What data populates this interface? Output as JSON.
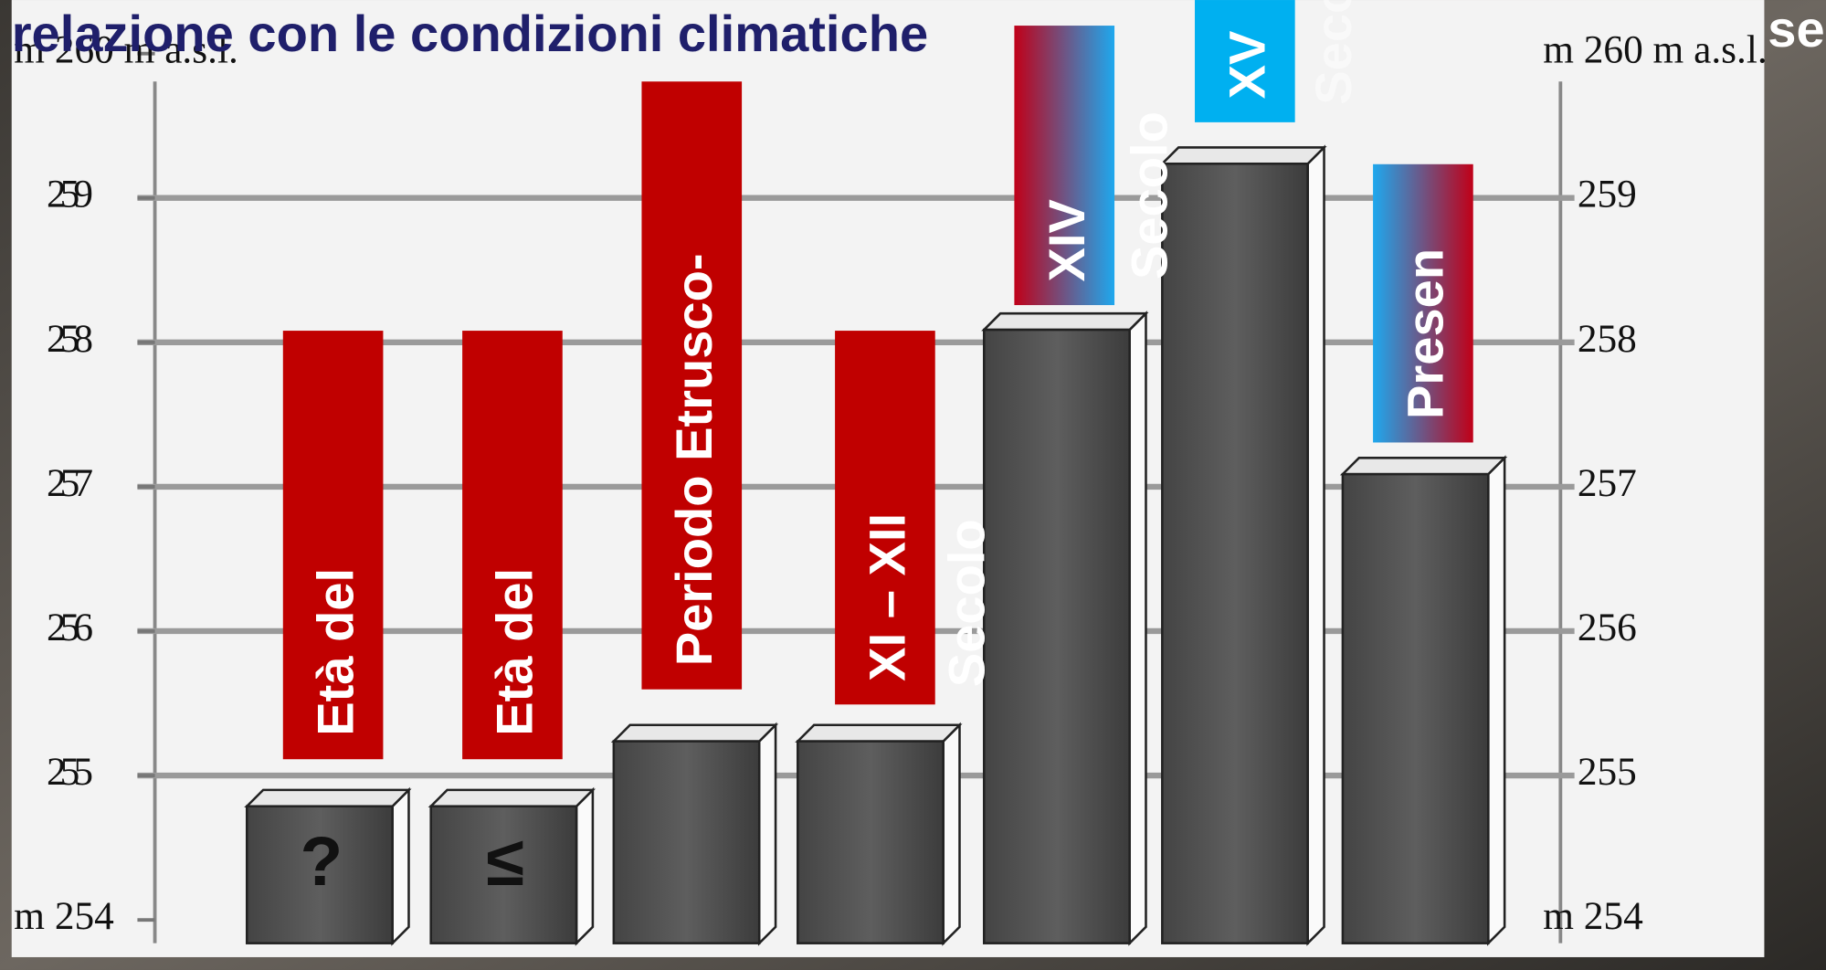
{
  "chart_data": {
    "type": "bar",
    "title": "relazione con le condizioni climatiche",
    "categories": [
      "Età del",
      "Età del",
      "Periodo Etrusco-",
      "XI – XII",
      "XIV",
      "XV",
      "Presen"
    ],
    "values": [
      254.9,
      254.9,
      255.35,
      255.35,
      258.2,
      259.35,
      257.2
    ],
    "color": "#555555",
    "ylim": [
      254,
      260
    ],
    "yticks": [
      {
        "value": 254,
        "label": "m 254"
      },
      255,
      256,
      257,
      258,
      259,
      {
        "value": 260,
        "label": "m 260 m a.s.l."
      }
    ],
    "grid": true,
    "annotations": [
      "?",
      "≤",
      "Secolo",
      "Secolo",
      "Secolo",
      "se"
    ]
  }
}
